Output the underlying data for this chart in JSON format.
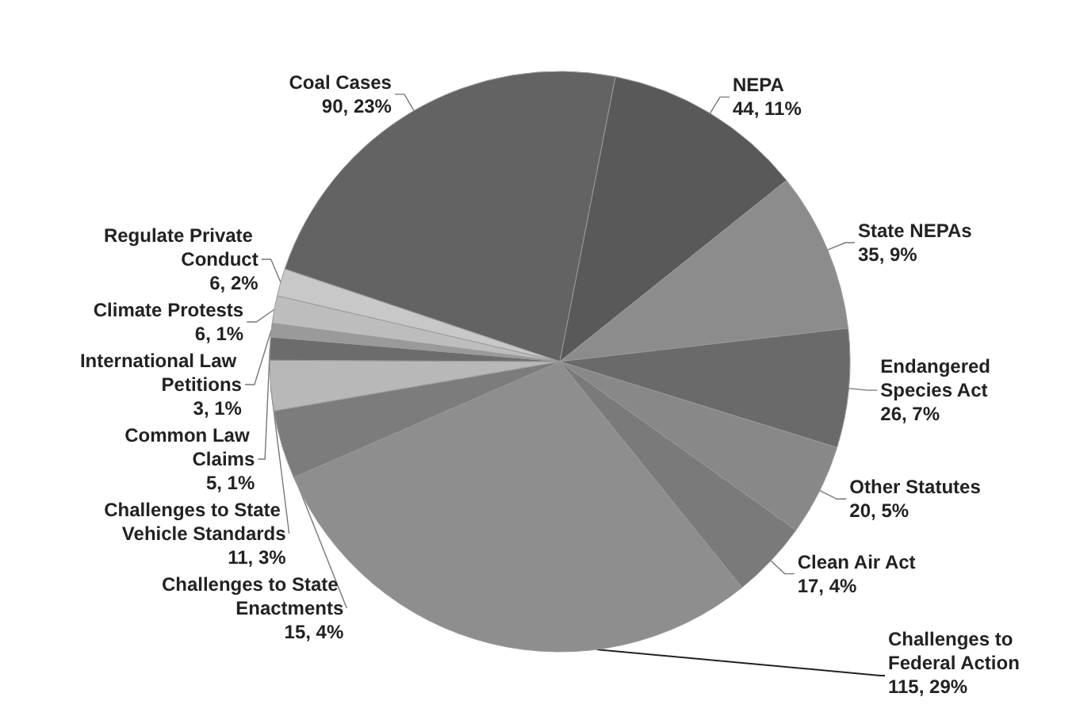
{
  "chart_data": {
    "type": "pie",
    "categories": [
      "Coal Cases",
      "NEPA",
      "State NEPAs",
      "Endangered Species Act",
      "Other Statutes",
      "Clean Air Act",
      "Challenges to Federal Action",
      "Challenges to State Enactments",
      "Challenges to State Vehicle Standards",
      "Common Law Claims",
      "International Law Petitions",
      "Climate Protests",
      "Regulate Private Conduct"
    ],
    "values": [
      90,
      44,
      35,
      26,
      20,
      17,
      115,
      15,
      11,
      5,
      3,
      6,
      6
    ],
    "value_labels": [
      "90, 23%",
      "44, 11%",
      "35, 9%",
      "26, 7%",
      "20, 5%",
      "17, 4%",
      "115, 29%",
      "15, 4%",
      "11, 3%",
      "5, 1%",
      "3, 1%",
      "6, 1%",
      "6, 2%"
    ],
    "colors": [
      "#636363",
      "#595959",
      "#8c8c8c",
      "#6a6a6a",
      "#888888",
      "#7a7a7a",
      "#8e8e8e",
      "#7c7c7c",
      "#b8b8b8",
      "#6c6c6c",
      "#9a9a9a",
      "#bdbdbd",
      "#c8c8c8"
    ],
    "legend": false
  }
}
